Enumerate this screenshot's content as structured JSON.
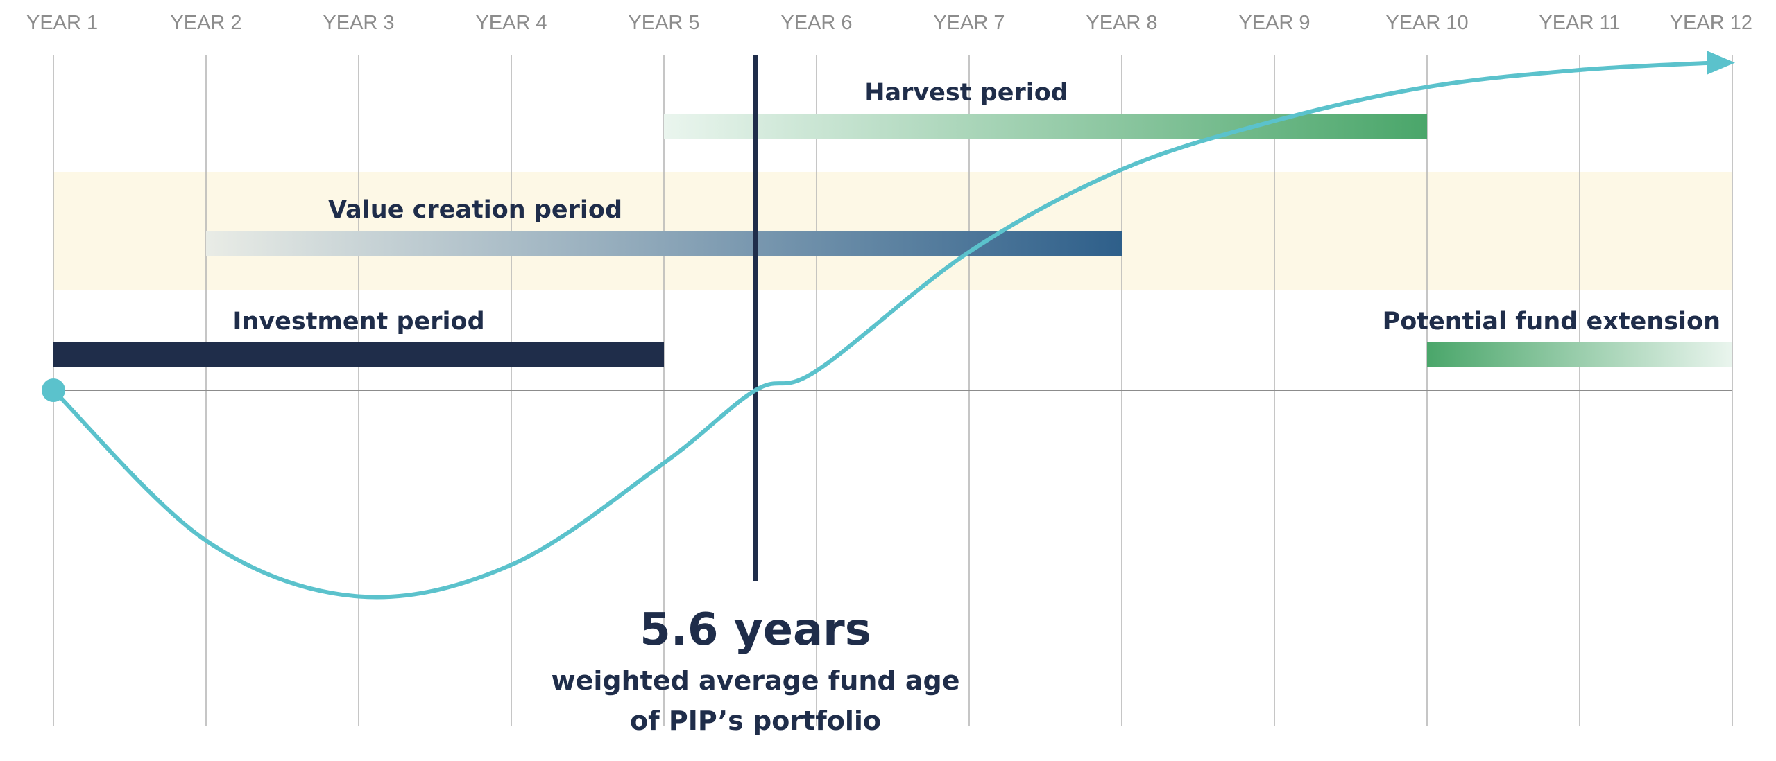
{
  "chart_data": {
    "type": "timeline",
    "x_ticks": [
      "YEAR 1",
      "YEAR 2",
      "YEAR 3",
      "YEAR 4",
      "YEAR 5",
      "YEAR 6",
      "YEAR 7",
      "YEAR 8",
      "YEAR 9",
      "YEAR 10",
      "YEAR 11",
      "YEAR 12"
    ],
    "xlim": [
      1,
      12
    ],
    "periods": [
      {
        "id": "harvest",
        "label": "Harvest period",
        "start": 5,
        "end": 10,
        "gradient": [
          "#eaf5ee",
          "#4aa66a"
        ]
      },
      {
        "id": "value-creation",
        "label": "Value creation period",
        "start": 2,
        "end": 8,
        "gradient": [
          "#e9ece6",
          "#2e5f8a"
        ]
      },
      {
        "id": "investment",
        "label": "Investment period",
        "start": 1,
        "end": 5,
        "gradient": [
          "#1f2d4a",
          "#1f2d4a"
        ]
      },
      {
        "id": "extension",
        "label": "Potential fund extension",
        "start": 10,
        "end": 12,
        "gradient": [
          "#4aa66a",
          "#eaf5ee"
        ]
      }
    ],
    "highlight_band": {
      "start": 1,
      "end": 12,
      "color": "#fdf8e6"
    },
    "marker": {
      "value": 5.6,
      "headline": "5.6 years",
      "caption_line1": "weighted average fund age",
      "caption_line2": "of PIP’s portfolio",
      "color": "#1f2d4a"
    },
    "curve": {
      "color": "#5bc2cc",
      "points": [
        [
          1,
          0
        ],
        [
          2,
          -0.62
        ],
        [
          3,
          -0.85
        ],
        [
          4,
          -0.72
        ],
        [
          5,
          -0.3
        ],
        [
          5.6,
          0
        ],
        [
          6,
          0.08
        ],
        [
          7,
          0.57
        ],
        [
          8,
          0.91
        ],
        [
          9,
          1.11
        ],
        [
          10,
          1.25
        ],
        [
          11,
          1.32
        ],
        [
          12,
          1.35
        ]
      ]
    }
  }
}
